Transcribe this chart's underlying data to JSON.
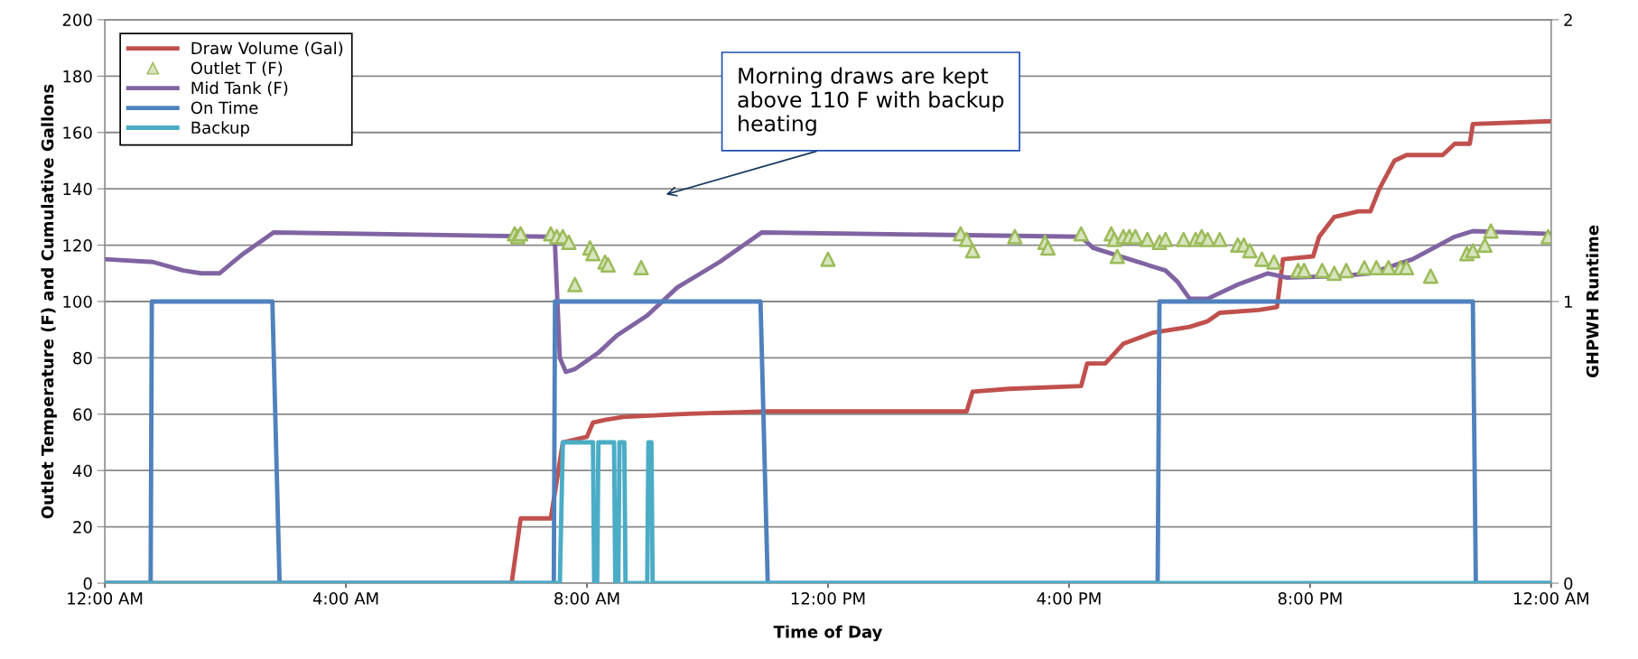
{
  "chart_data": {
    "type": "line",
    "xlabel": "Time of Day",
    "ylabel": "Outlet Temperature (F) and Cumulative Gallons",
    "y2label": "GHPWH Runtime",
    "xlim": [
      0,
      24
    ],
    "xticks": [
      {
        "value": 0,
        "label": "12:00 AM"
      },
      {
        "value": 4,
        "label": "4:00 AM"
      },
      {
        "value": 8,
        "label": "8:00 AM"
      },
      {
        "value": 12,
        "label": "12:00 PM"
      },
      {
        "value": 16,
        "label": "4:00 PM"
      },
      {
        "value": 20,
        "label": "8:00 PM"
      },
      {
        "value": 24,
        "label": "12:00 AM"
      }
    ],
    "ylim": [
      0,
      200
    ],
    "yticks": [
      0,
      20,
      40,
      60,
      80,
      100,
      120,
      140,
      160,
      180,
      200
    ],
    "y2lim": [
      0,
      2
    ],
    "y2ticks": [
      0,
      1,
      2
    ],
    "grid": "y",
    "legend": "top left",
    "marker": "none",
    "line_style": "solid",
    "annotations": [
      "Morning draws are kept above 110 F with backup heating"
    ],
    "series": [
      {
        "name": "Draw Volume (Gal)",
        "color": "#c0504d",
        "x": [
          0,
          6.75,
          6.9,
          7.4,
          7.6,
          8.0,
          8.1,
          8.3,
          8.6,
          9.5,
          11.0,
          14.3,
          14.4,
          15.0,
          16.2,
          16.3,
          16.6,
          16.9,
          17.4,
          18.0,
          18.3,
          18.5,
          19.15,
          19.45,
          19.55,
          20.05,
          20.15,
          20.4,
          20.8,
          21.0,
          21.15,
          21.4,
          21.6,
          22.2,
          22.4,
          22.65,
          22.7,
          24.0
        ],
        "values": [
          0,
          0,
          23,
          23,
          50,
          52,
          57,
          58,
          59,
          60,
          61,
          61,
          68,
          69,
          70,
          78,
          78,
          85,
          89,
          91,
          93,
          96,
          97,
          98,
          115,
          116,
          123,
          130,
          132,
          132,
          140,
          150,
          152,
          152,
          156,
          156,
          163,
          164
        ]
      },
      {
        "name": "Outlet T (F)",
        "type": "scatter",
        "color": "#9bbb59",
        "marker": "triangle",
        "x": [
          6.8,
          6.85,
          6.9,
          7.4,
          7.5,
          7.6,
          7.7,
          7.8,
          8.05,
          8.1,
          8.3,
          8.35,
          8.9,
          12.0,
          14.2,
          14.3,
          14.4,
          15.1,
          15.6,
          15.65,
          16.2,
          16.7,
          16.75,
          16.8,
          16.9,
          17.0,
          17.1,
          17.3,
          17.5,
          17.6,
          17.9,
          18.1,
          18.2,
          18.3,
          18.5,
          18.8,
          18.9,
          19.0,
          19.2,
          19.4,
          19.8,
          19.9,
          20.2,
          20.4,
          20.6,
          20.9,
          21.1,
          21.3,
          21.5,
          21.6,
          22.0,
          22.6,
          22.7,
          22.9,
          23.0,
          23.95
        ],
        "values": [
          124,
          123,
          124,
          124,
          123,
          123,
          121,
          106,
          119,
          117,
          114,
          113,
          112,
          115,
          124,
          122,
          118,
          123,
          121,
          119,
          124,
          124,
          122,
          116,
          123,
          123,
          123,
          122,
          121,
          122,
          122,
          122,
          123,
          122,
          122,
          120,
          120,
          118,
          115,
          114,
          111,
          111,
          111,
          110,
          111,
          112,
          112,
          112,
          112,
          112,
          109,
          117,
          118,
          120,
          125,
          123
        ]
      },
      {
        "name": "Mid Tank (F)",
        "color": "#8064a2",
        "x": [
          0,
          0.8,
          1.3,
          1.6,
          1.9,
          2.3,
          2.8,
          7.4,
          7.47,
          7.55,
          7.65,
          7.8,
          8.2,
          8.5,
          9.0,
          9.5,
          10.2,
          10.9,
          16.2,
          16.4,
          17.0,
          17.6,
          17.8,
          18.0,
          18.3,
          18.8,
          19.3,
          19.6,
          20.5,
          21.0,
          21.7,
          22.4,
          22.7,
          24.0
        ],
        "values": [
          115,
          114,
          111,
          110,
          110,
          117,
          124.5,
          123,
          120,
          80,
          75,
          76,
          82,
          88,
          95,
          105,
          114,
          124.5,
          123,
          119,
          115,
          111,
          107,
          101,
          101,
          106,
          110,
          108.5,
          109,
          110,
          115,
          123,
          125,
          124
        ]
      },
      {
        "name": "On Time",
        "axis": "y2",
        "color": "#4f81bd",
        "x": [
          0,
          0.76,
          0.78,
          2.78,
          2.9,
          7.45,
          7.47,
          10.88,
          11.0,
          17.47,
          17.5,
          22.7,
          22.75,
          24.0
        ],
        "values": [
          0,
          0,
          1,
          1,
          0,
          0,
          1,
          1,
          0,
          0,
          1,
          1,
          0,
          0
        ]
      },
      {
        "name": "Backup",
        "axis": "y2",
        "color": "#4bacc6",
        "x": [
          0,
          7.55,
          7.6,
          8.1,
          8.12,
          8.17,
          8.19,
          8.45,
          8.47,
          8.52,
          8.54,
          8.62,
          8.64,
          9.0,
          9.02,
          9.07,
          9.09,
          24.0
        ],
        "values": [
          0,
          0,
          0.5,
          0.5,
          0,
          0,
          0.5,
          0.5,
          0,
          0,
          0.5,
          0.5,
          0,
          0,
          0.5,
          0.5,
          0,
          0
        ]
      }
    ]
  }
}
